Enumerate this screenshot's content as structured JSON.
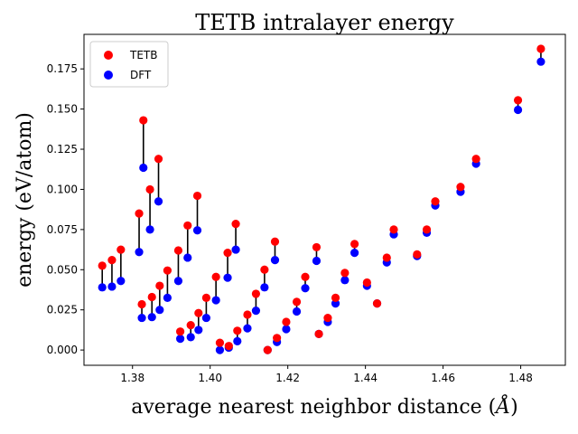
{
  "chart_data": {
    "type": "scatter",
    "title": "TETB intralayer energy",
    "xlabel": "average nearest neighbor distance (",
    "xlabel_unit": "Å",
    "xlabel_close": ")",
    "ylabel": "energy (eV/atom)",
    "xlim": [
      1.3675,
      1.4915
    ],
    "ylim": [
      -0.0095,
      0.1965
    ],
    "xticks": [
      1.38,
      1.4,
      1.42,
      1.44,
      1.46,
      1.48
    ],
    "xtick_labels": [
      "1.38",
      "1.40",
      "1.42",
      "1.44",
      "1.46",
      "1.48"
    ],
    "yticks": [
      0.0,
      0.025,
      0.05,
      0.075,
      0.1,
      0.125,
      0.15,
      0.175
    ],
    "ytick_labels": [
      "0.000",
      "0.025",
      "0.050",
      "0.075",
      "0.100",
      "0.125",
      "0.150",
      "0.175"
    ],
    "legend": {
      "position": "top-left",
      "entries": [
        "TETB",
        "DFT"
      ]
    },
    "series": [
      {
        "name": "TETB",
        "color": "#ff0000"
      },
      {
        "name": "DFT",
        "color": "#0000ff"
      }
    ],
    "x": [
      1.3722,
      1.3747,
      1.377,
      1.3817,
      1.3824,
      1.3828,
      1.3845,
      1.385,
      1.3867,
      1.387,
      1.389,
      1.3918,
      1.3923,
      1.3942,
      1.395,
      1.3967,
      1.397,
      1.399,
      1.4015,
      1.4025,
      1.4045,
      1.4048,
      1.4066,
      1.407,
      1.4096,
      1.4118,
      1.414,
      1.4148,
      1.4167,
      1.4172,
      1.4196,
      1.4223,
      1.4245,
      1.4274,
      1.428,
      1.4303,
      1.4323,
      1.4347,
      1.4372,
      1.4404,
      1.443,
      1.4455,
      1.4473,
      1.4533,
      1.4558,
      1.458,
      1.4645,
      1.4685,
      1.4793,
      1.4852
    ],
    "tetb": [
      0.0525,
      0.056,
      0.0625,
      0.085,
      0.0285,
      0.143,
      0.1,
      0.033,
      0.119,
      0.04,
      0.0495,
      0.062,
      0.0115,
      0.0775,
      0.0155,
      0.096,
      0.023,
      0.0325,
      0.0455,
      0.0045,
      0.0605,
      0.0025,
      0.0785,
      0.012,
      0.022,
      0.035,
      0.05,
      0.0,
      0.0675,
      0.0075,
      0.0175,
      0.03,
      0.0455,
      0.064,
      0.01,
      0.02,
      0.0325,
      0.048,
      0.066,
      0.042,
      0.029,
      0.0575,
      0.075,
      0.0595,
      0.075,
      0.0925,
      0.1015,
      0.119,
      0.1555,
      0.1875
    ],
    "dft": [
      0.039,
      0.0395,
      0.043,
      0.061,
      0.02,
      0.1135,
      0.075,
      0.0205,
      0.0925,
      0.025,
      0.0325,
      0.043,
      0.007,
      0.0575,
      0.008,
      0.0745,
      0.0125,
      0.02,
      0.031,
      0.0,
      0.045,
      0.0015,
      0.0625,
      0.0055,
      0.0135,
      0.0245,
      0.039,
      0.0,
      0.056,
      0.005,
      0.013,
      0.024,
      0.0385,
      0.0555,
      0.01,
      0.0175,
      0.029,
      0.0435,
      0.0605,
      0.04,
      0.029,
      0.0545,
      0.072,
      0.0585,
      0.073,
      0.09,
      0.0985,
      0.116,
      0.1495,
      0.1795
    ]
  }
}
